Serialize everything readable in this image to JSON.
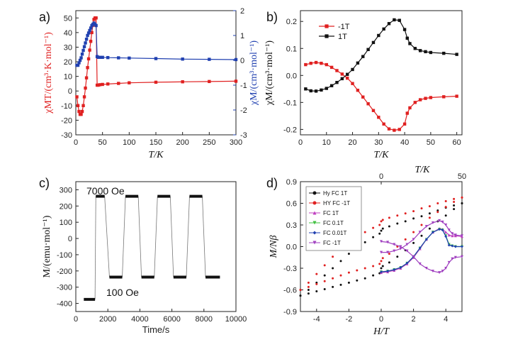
{
  "colors": {
    "red": "#e02020",
    "blue": "#2040b0",
    "black": "#111111",
    "magenta": "#c040c0",
    "green": "#40c040",
    "violet": "#a040c0"
  },
  "chart_data": [
    {
      "id": "a",
      "panel_label": "a)",
      "type": "line",
      "xlabel": "T/K",
      "ylabel_left": "χMT/(cm³·K·mol⁻¹)",
      "ylabel_right": "χM/(cm³·mol⁻¹)",
      "xlim": [
        0,
        300
      ],
      "ylim_left": [
        -30,
        55
      ],
      "ylim_right": [
        -3,
        2
      ],
      "xticks": [
        0,
        50,
        100,
        150,
        200,
        250,
        300
      ],
      "yticks_left": [
        -30,
        -20,
        -10,
        0,
        10,
        20,
        30,
        40,
        50
      ],
      "yticks_right": [
        -3,
        -2,
        -1,
        0,
        1,
        2
      ],
      "series": [
        {
          "axis": "left",
          "color": "#e02020",
          "marker": "square",
          "x": [
            2,
            4,
            6,
            8,
            10,
            12,
            14,
            16,
            18,
            20,
            22,
            24,
            26,
            28,
            30,
            32,
            34,
            36,
            38,
            40,
            42,
            45,
            50,
            60,
            80,
            100,
            150,
            200,
            250,
            300
          ],
          "y": [
            -4,
            -10,
            -14,
            -16,
            -16,
            -14,
            -10,
            -4,
            2,
            9,
            16,
            22,
            28,
            34,
            40,
            45,
            49,
            50,
            50,
            4,
            4,
            4.3,
            4.5,
            4.8,
            5.2,
            5.6,
            6,
            6.3,
            6.5,
            6.7
          ]
        },
        {
          "axis": "right",
          "color": "#2040b0",
          "marker": "square",
          "x": [
            2,
            4,
            6,
            8,
            10,
            12,
            14,
            16,
            18,
            20,
            22,
            24,
            26,
            28,
            30,
            32,
            34,
            36,
            38,
            40,
            42,
            45,
            50,
            60,
            80,
            100,
            150,
            200,
            250,
            300
          ],
          "y": [
            -0.2,
            -0.2,
            -0.1,
            0.0,
            0.1,
            0.25,
            0.4,
            0.55,
            0.7,
            0.85,
            1.0,
            1.1,
            1.2,
            1.3,
            1.4,
            1.45,
            1.5,
            1.45,
            1.4,
            0.15,
            0.12,
            0.12,
            0.12,
            0.11,
            0.1,
            0.09,
            0.07,
            0.05,
            0.04,
            0.03
          ]
        }
      ]
    },
    {
      "id": "b",
      "panel_label": "b)",
      "type": "line",
      "xlabel": "T/K",
      "ylabel": "χM/(cm³·mol⁻¹)",
      "xlim": [
        0,
        62
      ],
      "ylim": [
        -0.22,
        0.24
      ],
      "xticks": [
        0,
        10,
        20,
        30,
        40,
        50,
        60
      ],
      "yticks": [
        -0.2,
        -0.1,
        0.0,
        0.1,
        0.2
      ],
      "legend": "top-left",
      "series": [
        {
          "name": "-1T",
          "color": "#e02020",
          "marker": "square",
          "x": [
            2,
            4,
            6,
            8,
            10,
            12,
            14,
            16,
            18,
            20,
            22,
            24,
            26,
            28,
            30,
            32,
            34,
            36,
            38,
            40,
            41,
            42,
            44,
            46,
            48,
            50,
            55,
            60
          ],
          "y": [
            0.04,
            0.045,
            0.048,
            0.045,
            0.04,
            0.03,
            0.018,
            0.005,
            -0.01,
            -0.03,
            -0.055,
            -0.08,
            -0.105,
            -0.13,
            -0.155,
            -0.18,
            -0.198,
            -0.203,
            -0.2,
            -0.18,
            -0.14,
            -0.12,
            -0.1,
            -0.09,
            -0.085,
            -0.082,
            -0.079,
            -0.077
          ]
        },
        {
          "name": "1T",
          "color": "#111111",
          "marker": "square",
          "x": [
            2,
            4,
            6,
            8,
            10,
            12,
            14,
            16,
            18,
            20,
            22,
            24,
            26,
            28,
            30,
            32,
            34,
            36,
            38,
            40,
            41,
            42,
            44,
            46,
            48,
            50,
            55,
            60
          ],
          "y": [
            -0.05,
            -0.057,
            -0.058,
            -0.054,
            -0.048,
            -0.038,
            -0.026,
            -0.012,
            0.004,
            0.022,
            0.046,
            0.07,
            0.096,
            0.122,
            0.148,
            0.172,
            0.192,
            0.206,
            0.204,
            0.17,
            0.138,
            0.118,
            0.1,
            0.092,
            0.088,
            0.085,
            0.082,
            0.078
          ]
        }
      ]
    },
    {
      "id": "c",
      "panel_label": "c)",
      "type": "line",
      "xlabel": "Time/s",
      "ylabel": "M/(emu·mol⁻¹)",
      "xlim": [
        0,
        10000
      ],
      "ylim": [
        -450,
        350
      ],
      "xticks": [
        0,
        2000,
        4000,
        6000,
        8000,
        10000
      ],
      "yticks": [
        -400,
        -300,
        -200,
        -100,
        0,
        100,
        200,
        300
      ],
      "annotations": [
        "7000 Oe",
        "100 Oe"
      ],
      "series": [
        {
          "color": "#111111",
          "marker": "square",
          "segments": [
            {
              "x": [
                500,
                1200
              ],
              "y": -375
            },
            {
              "x": [
                1250,
                1800
              ],
              "y": 260
            },
            {
              "x": [
                2100,
                2900
              ],
              "y": -238
            },
            {
              "x": [
                3100,
                3900
              ],
              "y": 260
            },
            {
              "x": [
                4100,
                4900
              ],
              "y": -238
            },
            {
              "x": [
                5100,
                5900
              ],
              "y": 260
            },
            {
              "x": [
                6100,
                6900
              ],
              "y": -238
            },
            {
              "x": [
                7100,
                7900
              ],
              "y": 260
            },
            {
              "x": [
                8100,
                9000
              ],
              "y": -238
            }
          ]
        }
      ]
    },
    {
      "id": "d",
      "panel_label": "d)",
      "type": "scatter",
      "xlabel": "H/T",
      "ylabel": "M/Nβ",
      "x2label": "T/K",
      "xlim": [
        -5,
        5
      ],
      "ylim": [
        -0.9,
        0.9
      ],
      "x2lim": [
        -50,
        50
      ],
      "xticks": [
        -4,
        -2,
        0,
        2,
        4
      ],
      "yticks": [
        -0.9,
        -0.6,
        -0.3,
        0.0,
        0.3,
        0.6,
        0.9
      ],
      "x2ticks": [
        0,
        50
      ],
      "legend": "top-left",
      "series": [
        {
          "name": "Hy FC 1T",
          "color": "#111111",
          "marker": "circle",
          "axis": "bottom",
          "x": [
            -5,
            -4.5,
            -4,
            -3.5,
            -3,
            -2.5,
            -2,
            -1.5,
            -1,
            -0.5,
            -0.1,
            0,
            0.1,
            0.5,
            1,
            1.5,
            2,
            2.5,
            3,
            3.5,
            4,
            4.5,
            5
          ],
          "y": [
            -0.68,
            -0.65,
            -0.62,
            -0.59,
            -0.56,
            -0.53,
            -0.5,
            -0.47,
            -0.44,
            -0.4,
            -0.37,
            -0.3,
            -0.27,
            -0.22,
            -0.14,
            -0.05,
            0.05,
            0.15,
            0.25,
            0.35,
            0.43,
            0.52,
            0.6
          ]
        },
        {
          "name": "Hy FC 1T",
          "color": "#111111",
          "marker": "circle",
          "axis": "bottom",
          "x": [
            -5,
            -4.5,
            -4,
            -3.5,
            -3,
            -2.5,
            -2,
            -1.5,
            -1,
            -0.5,
            -0.1,
            0,
            0.1,
            0.5,
            1,
            1.5,
            2,
            2.5,
            3,
            3.5,
            4,
            4.5,
            5
          ],
          "y": [
            -0.68,
            -0.6,
            -0.5,
            -0.4,
            -0.3,
            -0.2,
            -0.1,
            -0.02,
            0.06,
            0.13,
            0.18,
            0.22,
            0.25,
            0.28,
            0.32,
            0.35,
            0.39,
            0.42,
            0.46,
            0.5,
            0.54,
            0.57,
            0.6
          ]
        },
        {
          "name": "HY FC -1T",
          "color": "#e02020",
          "marker": "circle",
          "axis": "bottom",
          "x": [
            -5,
            -4.5,
            -4,
            -3.5,
            -3,
            -2.5,
            -2,
            -1.5,
            -1,
            -0.5,
            -0.1,
            0,
            0.1,
            0.5,
            1,
            1.5,
            2,
            2.5,
            3,
            3.5,
            4,
            4.5,
            5
          ],
          "y": [
            -0.6,
            -0.56,
            -0.52,
            -0.48,
            -0.44,
            -0.4,
            -0.36,
            -0.33,
            -0.3,
            -0.27,
            -0.24,
            -0.2,
            -0.16,
            -0.1,
            0.0,
            0.1,
            0.2,
            0.3,
            0.4,
            0.48,
            0.55,
            0.62,
            0.68
          ]
        },
        {
          "name": "HY FC -1T",
          "color": "#e02020",
          "marker": "circle",
          "axis": "bottom",
          "x": [
            -5,
            -4.5,
            -4,
            -3.5,
            -3,
            -2.5,
            -2,
            -1.5,
            -1,
            -0.5,
            -0.1,
            0,
            0.1,
            0.5,
            1,
            1.5,
            2,
            2.5,
            3,
            3.5,
            4,
            4.5,
            5
          ],
          "y": [
            -0.6,
            -0.5,
            -0.38,
            -0.26,
            -0.14,
            -0.03,
            0.07,
            0.14,
            0.2,
            0.26,
            0.3,
            0.35,
            0.37,
            0.4,
            0.43,
            0.46,
            0.49,
            0.53,
            0.56,
            0.6,
            0.63,
            0.66,
            0.68
          ]
        },
        {
          "name": "FC 1T",
          "color": "#c040c0",
          "marker": "triangle-up",
          "axis": "top",
          "x": [
            0,
            4,
            8,
            12,
            16,
            20,
            24,
            28,
            32,
            36,
            38,
            40,
            42,
            44,
            46,
            50
          ],
          "y": [
            -0.36,
            -0.35,
            -0.33,
            -0.3,
            -0.24,
            -0.15,
            -0.03,
            0.1,
            0.2,
            0.25,
            0.24,
            0.2,
            0.16,
            0.15,
            0.15,
            0.14
          ]
        },
        {
          "name": "FC 0.1T",
          "color": "#40c040",
          "marker": "triangle-down",
          "axis": "top",
          "x": [
            0,
            4,
            8,
            12,
            16,
            20,
            24,
            28,
            32,
            36,
            38,
            40,
            42,
            44,
            46,
            50
          ],
          "y": [
            -0.35,
            -0.34,
            -0.32,
            -0.29,
            -0.23,
            -0.14,
            -0.02,
            0.1,
            0.2,
            0.24,
            0.23,
            0.15,
            0.03,
            0.01,
            0.0,
            0.0
          ]
        },
        {
          "name": "FC 0.01T",
          "color": "#2040b0",
          "marker": "diamond",
          "axis": "top",
          "x": [
            0,
            4,
            8,
            12,
            16,
            20,
            24,
            28,
            32,
            36,
            38,
            40,
            42,
            44,
            46,
            50
          ],
          "y": [
            -0.35,
            -0.34,
            -0.32,
            -0.29,
            -0.23,
            -0.14,
            -0.02,
            0.1,
            0.2,
            0.24,
            0.23,
            0.14,
            0.02,
            0.01,
            0.0,
            0.0
          ]
        },
        {
          "name": "FC -1T",
          "color": "#a040c0",
          "marker": "triangle-down",
          "axis": "top",
          "x": [
            0,
            4,
            8,
            12,
            16,
            20,
            24,
            28,
            32,
            36,
            38,
            40,
            42,
            44,
            46,
            50
          ],
          "y": [
            0.07,
            0.06,
            0.03,
            0.0,
            -0.06,
            -0.14,
            -0.24,
            -0.3,
            -0.34,
            -0.36,
            -0.34,
            -0.3,
            -0.22,
            -0.17,
            -0.15,
            -0.14
          ]
        },
        {
          "name": "FC -1T",
          "color": "#a040c0",
          "marker": "triangle-down",
          "axis": "top",
          "x": [
            0,
            4,
            8,
            12,
            16,
            20,
            24,
            28,
            32,
            36,
            38,
            40,
            42,
            44,
            46,
            50
          ],
          "y": [
            -0.08,
            -0.08,
            -0.06,
            -0.03,
            0.03,
            0.1,
            0.2,
            0.28,
            0.33,
            0.36,
            0.34,
            0.3,
            0.23,
            0.18,
            0.16,
            0.15
          ]
        }
      ]
    }
  ]
}
